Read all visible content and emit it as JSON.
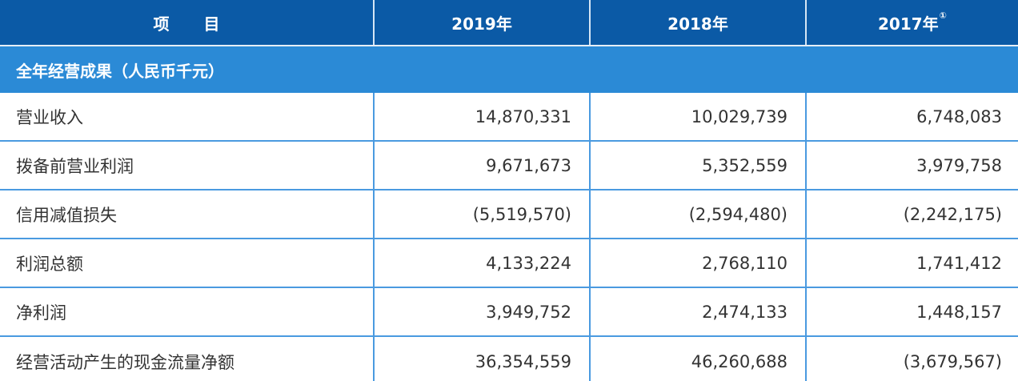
{
  "header": {
    "col_item": "项 目",
    "col_2019": "2019年",
    "col_2018": "2018年",
    "col_2017": "2017年",
    "col_2017_note": "①"
  },
  "section": {
    "title": "全年经营成果（人民币千元）"
  },
  "rows": [
    {
      "label": "营业收入",
      "y2019": "14,870,331",
      "y2018": "10,029,739",
      "y2017": "6,748,083"
    },
    {
      "label": "拨备前营业利润",
      "y2019": "9,671,673",
      "y2018": "5,352,559",
      "y2017": "3,979,758"
    },
    {
      "label": "信用减值损失",
      "y2019": "(5,519,570)",
      "y2018": "(2,594,480)",
      "y2017": "(2,242,175)"
    },
    {
      "label": "利润总额",
      "y2019": "4,133,224",
      "y2018": "2,768,110",
      "y2017": "1,741,412"
    },
    {
      "label": "净利润",
      "y2019": "3,949,752",
      "y2018": "2,474,133",
      "y2017": "1,448,157"
    },
    {
      "label": "经营活动产生的现金流量净额",
      "y2019": "36,354,559",
      "y2018": "46,260,688",
      "y2017": "(3,679,567)"
    }
  ],
  "colors": {
    "header_bg": "#0b5aa6",
    "section_bg": "#2b8ad6",
    "grid_line": "#4a9ae0",
    "text": "#333333"
  }
}
